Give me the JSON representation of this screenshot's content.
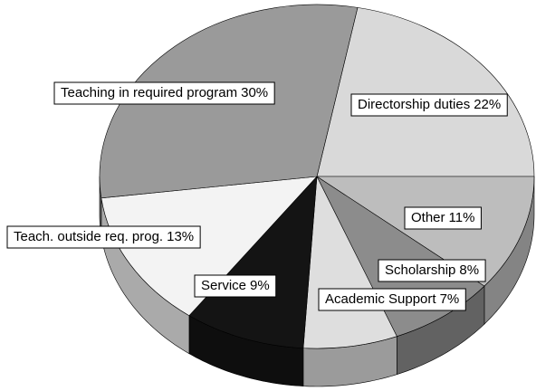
{
  "chart_data": {
    "type": "pie",
    "categories": [
      "Directorship duties",
      "Other",
      "Scholarship",
      "Academic Support",
      "Service",
      "Teach. outside req. prog.",
      "Teaching in required program"
    ],
    "values": [
      22,
      11,
      8,
      7,
      9,
      13,
      30
    ],
    "value_labels": [
      "22%",
      "11%",
      "8%",
      "7%",
      "9%",
      "13%",
      "30%"
    ],
    "colors": [
      "#d9d9d9",
      "#bdbdbd",
      "#8c8c8c",
      "#dedede",
      "#141414",
      "#f3f3f3",
      "#9a9a9a"
    ]
  }
}
